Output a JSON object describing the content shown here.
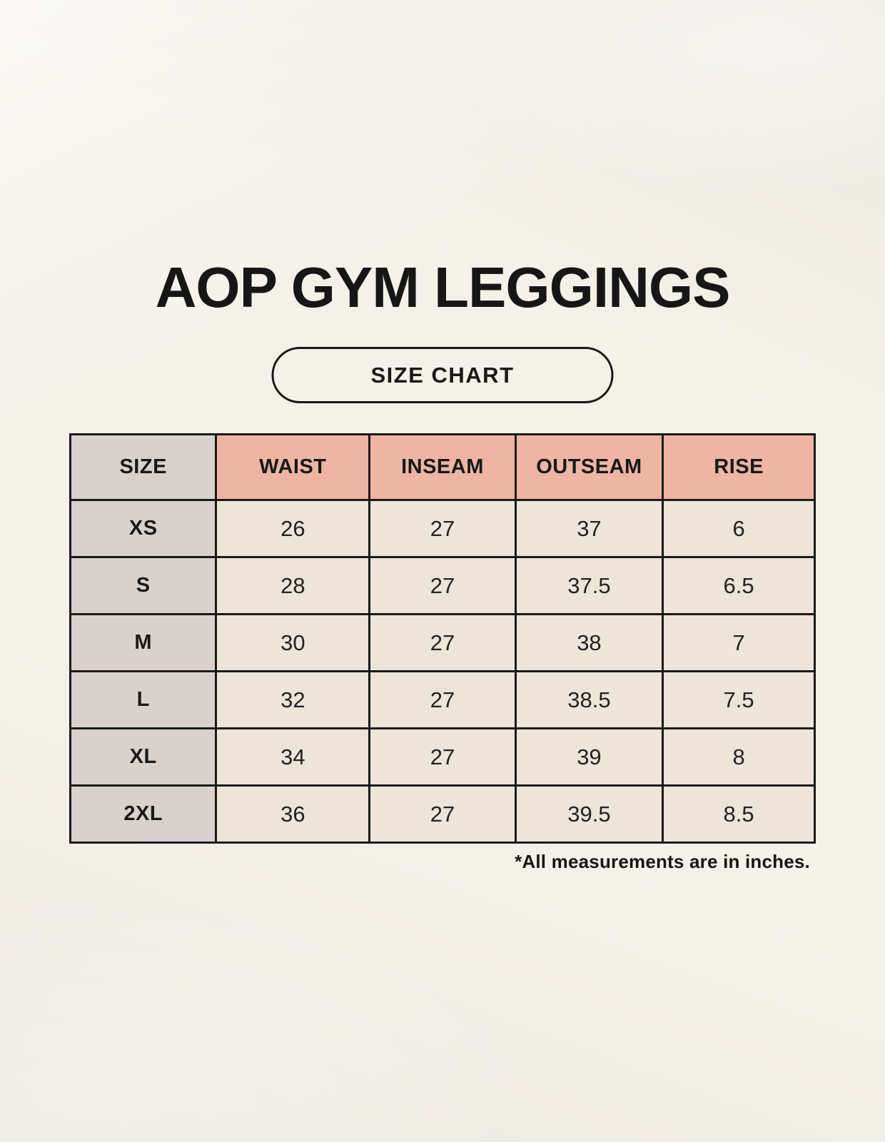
{
  "page": {
    "title": "AOP GYM LEGGINGS",
    "badge_label": "SIZE CHART",
    "footnote": "*All measurements are in inches."
  },
  "colors": {
    "background": "#f4f1e9",
    "header_accent": "#eeb5a4",
    "size_column": "#d9d2cc",
    "data_cell": "#ece5d8",
    "border": "#1a1a1a",
    "text": "#191919"
  },
  "chart_data": {
    "type": "table",
    "title": "AOP GYM LEGGINGS",
    "subtitle": "SIZE CHART",
    "columns": [
      "SIZE",
      "WAIST",
      "INSEAM",
      "OUTSEAM",
      "RISE"
    ],
    "rows": [
      [
        "XS",
        "26",
        "27",
        "37",
        "6"
      ],
      [
        "S",
        "28",
        "27",
        "37.5",
        "6.5"
      ],
      [
        "M",
        "30",
        "27",
        "38",
        "7"
      ],
      [
        "L",
        "32",
        "27",
        "38.5",
        "7.5"
      ],
      [
        "XL",
        "34",
        "27",
        "39",
        "8"
      ],
      [
        "2XL",
        "36",
        "27",
        "39.5",
        "8.5"
      ]
    ],
    "units": "inches",
    "note": "*All measurements are in inches."
  }
}
